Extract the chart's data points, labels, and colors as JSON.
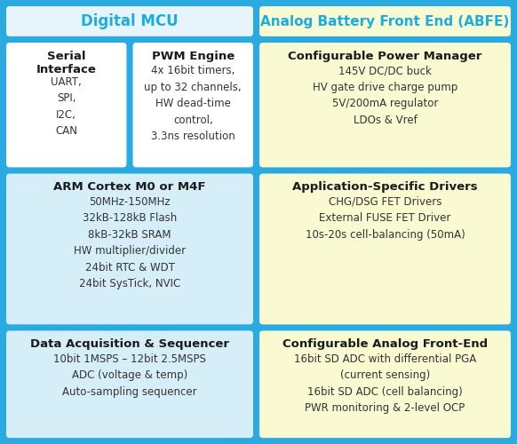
{
  "title_left": "Digital MCU",
  "title_right": "Analog Battery Front End (ABFE)",
  "title_color": "#1AADDE",
  "outer_bg": "#29ABE2",
  "header_left_bg": "#E8F4FB",
  "header_right_bg": "#FAFAD2",
  "cell_left_top_bg": "#FFFFFF",
  "cell_left_mid_bg": "#D6EEF8",
  "cell_right_bg": "#FAFAD2",
  "border_color": "#29ABE2",
  "cells": [
    {
      "id": "serial",
      "col": 0,
      "row": 0,
      "title": "Serial\nInterface",
      "body": "UART,\nSPI,\nI2C,\nCAN",
      "bg": "#FFFFFF",
      "title_size": 9.5
    },
    {
      "id": "pwm",
      "col": 1,
      "row": 0,
      "title": "PWM Engine",
      "body": "4x 16bit timers,\nup to 32 channels,\nHW dead-time\ncontrol,\n3.3ns resolution",
      "bg": "#FFFFFF",
      "title_size": 9.5
    },
    {
      "id": "power",
      "col": 2,
      "row": 0,
      "title": "Configurable Power Manager",
      "body": "145V DC/DC buck\nHV gate drive charge pump\n5V/200mA regulator\nLDOs & Vref",
      "bg": "#FAFAD2",
      "title_size": 9.5
    },
    {
      "id": "arm",
      "col": 0,
      "row": 1,
      "title": "ARM Cortex M0 or M4F",
      "body": "50MHz-150MHz\n32kB-128kB Flash\n8kB-32kB SRAM\nHW multiplier/divider\n24bit RTC & WDT\n24bit SysTick, NVIC",
      "bg": "#D6EEF8",
      "title_size": 9.5
    },
    {
      "id": "drivers",
      "col": 2,
      "row": 1,
      "title": "Application-Specific Drivers",
      "body": "CHG/DSG FET Drivers\nExternal FUSE FET Driver\n10s-20s cell-balancing (50mA)",
      "bg": "#FAFAD2",
      "title_size": 9.5
    },
    {
      "id": "daq",
      "col": 0,
      "row": 2,
      "title": "Data Acquisition & Sequencer",
      "body": "10bit 1MSPS – 12bit 2.5MSPS\nADC (voltage & temp)\nAuto-sampling sequencer",
      "bg": "#D6EEF8",
      "title_size": 9.5
    },
    {
      "id": "analog",
      "col": 2,
      "row": 2,
      "title": "Configurable Analog Front-End",
      "body": "16bit SD ADC with differential PGA\n(current sensing)\n16bit SD ADC (cell balancing)\nPWR monitoring & 2-level OCP",
      "bg": "#FAFAD2",
      "title_size": 9.5
    }
  ],
  "body_fontsize": 8.5,
  "body_color": "#333333",
  "title_bold_color": "#1a1a1a"
}
